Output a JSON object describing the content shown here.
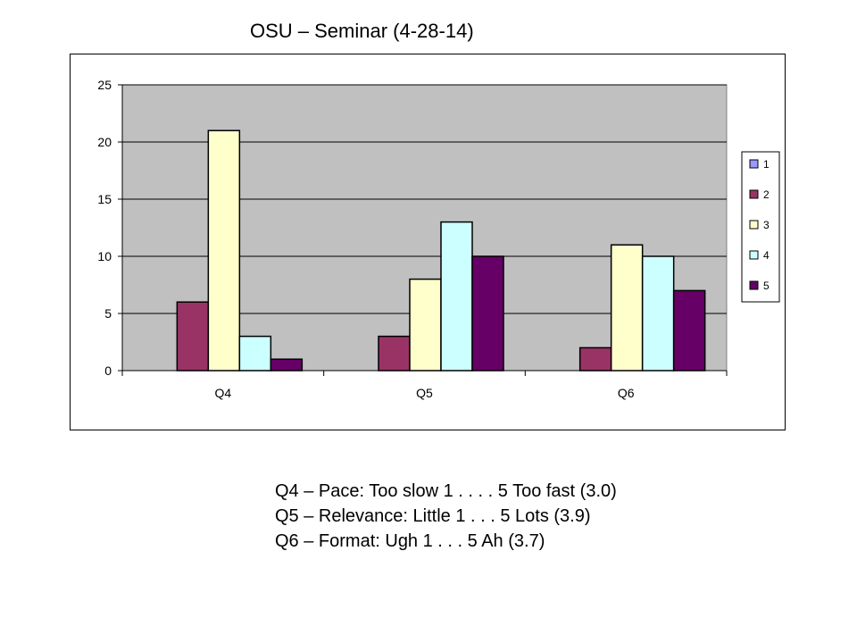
{
  "title": "OSU – Seminar (4-28-14)",
  "chart_data": {
    "type": "bar",
    "categories": [
      "Q4",
      "Q5",
      "Q6"
    ],
    "series": [
      {
        "name": "1",
        "color": "#9999FF",
        "values": [
          0,
          0,
          0
        ]
      },
      {
        "name": "2",
        "color": "#993366",
        "values": [
          6,
          3,
          2
        ]
      },
      {
        "name": "3",
        "color": "#FFFFCC",
        "values": [
          21,
          8,
          11
        ]
      },
      {
        "name": "4",
        "color": "#CCFFFF",
        "values": [
          3,
          13,
          10
        ]
      },
      {
        "name": "5",
        "color": "#660066",
        "values": [
          1,
          10,
          7
        ]
      }
    ],
    "y_ticks": [
      "0",
      "5",
      "10",
      "15",
      "20",
      "25"
    ],
    "ylim": [
      0,
      25
    ],
    "grid": true,
    "legend_position": "right",
    "plot_background": "#C0C0C0"
  },
  "notes": [
    "Q4 – Pace: Too slow 1 . . . . 5 Too fast (3.0)",
    "Q5 – Relevance: Little 1 . . . 5 Lots (3.9)",
    "Q6 – Format: Ugh 1 . . . 5 Ah (3.7)"
  ]
}
